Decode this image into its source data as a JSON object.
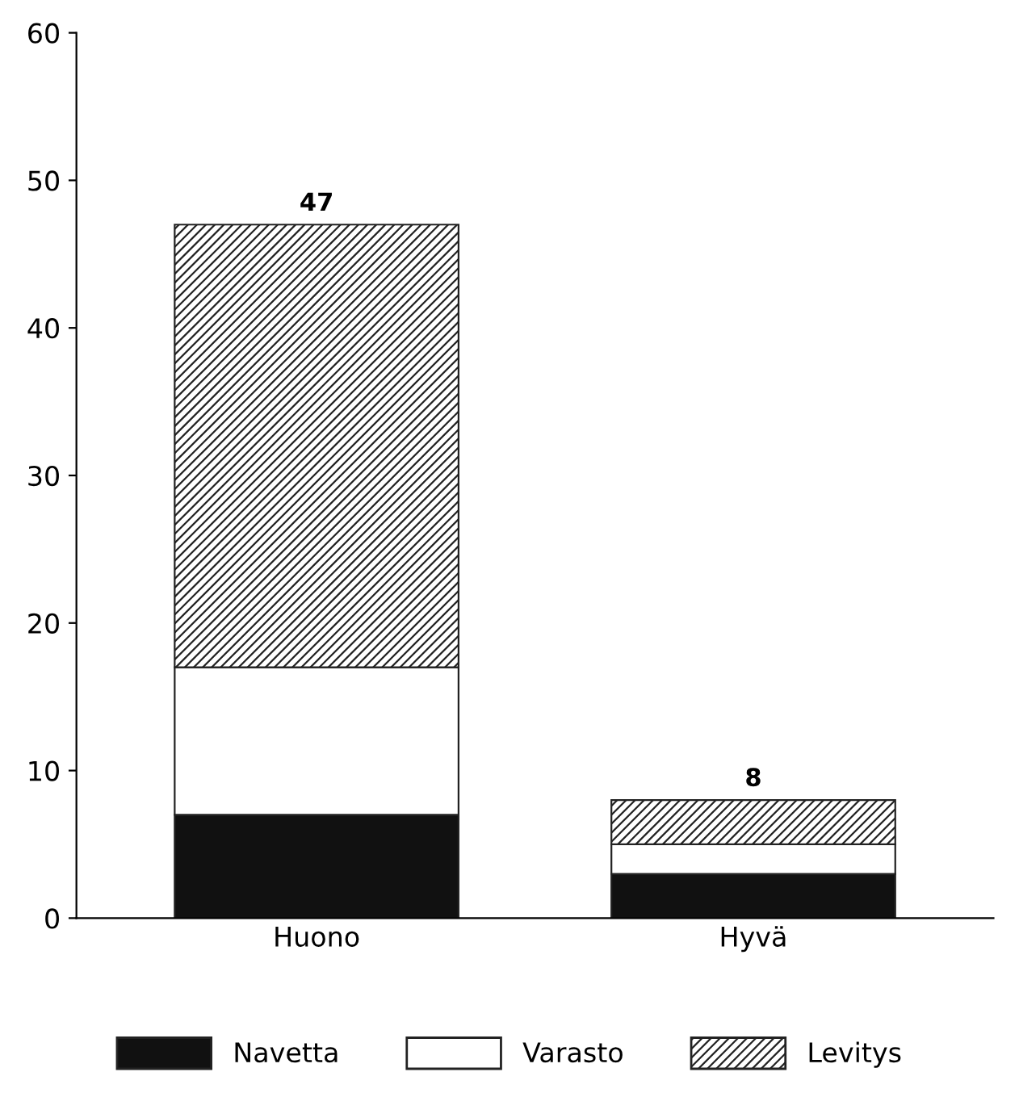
{
  "chart_data": {
    "type": "bar",
    "stacked": true,
    "categories": [
      "Huono",
      "Hyvä"
    ],
    "series": [
      {
        "name": "Navetta",
        "color": "#111111",
        "values": [
          7,
          3
        ]
      },
      {
        "name": "Varasto",
        "color": "#ffffff",
        "values": [
          10,
          2
        ]
      },
      {
        "name": "Levitys",
        "color": "#222222",
        "values": [
          30,
          3
        ]
      }
    ],
    "totals": [
      "47",
      "8"
    ],
    "ylim": [
      0,
      60
    ],
    "yticks": [
      0,
      10,
      20,
      30,
      40,
      50,
      60
    ],
    "grid": false,
    "legend": "bottom"
  }
}
